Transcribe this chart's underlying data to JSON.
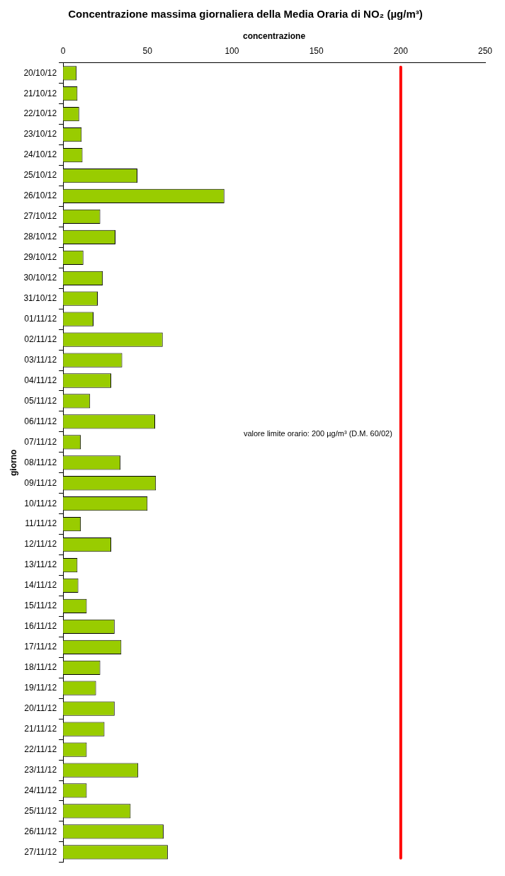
{
  "chart_data": {
    "type": "bar",
    "orientation": "horizontal",
    "title": "Concentrazione massima giornaliera della Media Oraria di NO₂ (µg/m³)",
    "xlabel": "concentrazione",
    "ylabel": "giorno",
    "categories": [
      "20/10/12",
      "21/10/12",
      "22/10/12",
      "23/10/12",
      "24/10/12",
      "25/10/12",
      "26/10/12",
      "27/10/12",
      "28/10/12",
      "29/10/12",
      "30/10/12",
      "31/10/12",
      "01/11/12",
      "02/11/12",
      "03/11/12",
      "04/11/12",
      "05/11/12",
      "06/11/12",
      "07/11/12",
      "08/11/12",
      "09/11/12",
      "10/11/12",
      "11/11/12",
      "12/11/12",
      "13/11/12",
      "14/11/12",
      "15/11/12",
      "16/11/12",
      "17/11/12",
      "18/11/12",
      "19/11/12",
      "20/11/12",
      "21/11/12",
      "22/11/12",
      "23/11/12",
      "24/11/12",
      "25/11/12",
      "26/11/12",
      "27/11/12"
    ],
    "values": [
      8,
      8.5,
      9.5,
      11,
      11.5,
      44,
      95.5,
      22,
      31,
      12,
      23.5,
      20.5,
      18,
      59,
      35,
      28.5,
      16,
      54.5,
      10.5,
      34,
      55,
      50,
      10.5,
      28.5,
      8.5,
      9,
      14,
      30.5,
      34.5,
      22,
      19.5,
      30.5,
      24.5,
      14,
      44.5,
      14,
      40,
      59.5,
      62
    ],
    "color": "#99cc00",
    "xlim": [
      0,
      250
    ],
    "xticks": [
      0,
      50,
      100,
      150,
      200,
      250
    ],
    "grid": false,
    "legend": false,
    "ref_lines": [
      {
        "axis": "x",
        "value": 200,
        "label": "valore limite orario: 200 µg/m³ (D.M. 60/02)",
        "color": "#ff0000"
      }
    ]
  }
}
